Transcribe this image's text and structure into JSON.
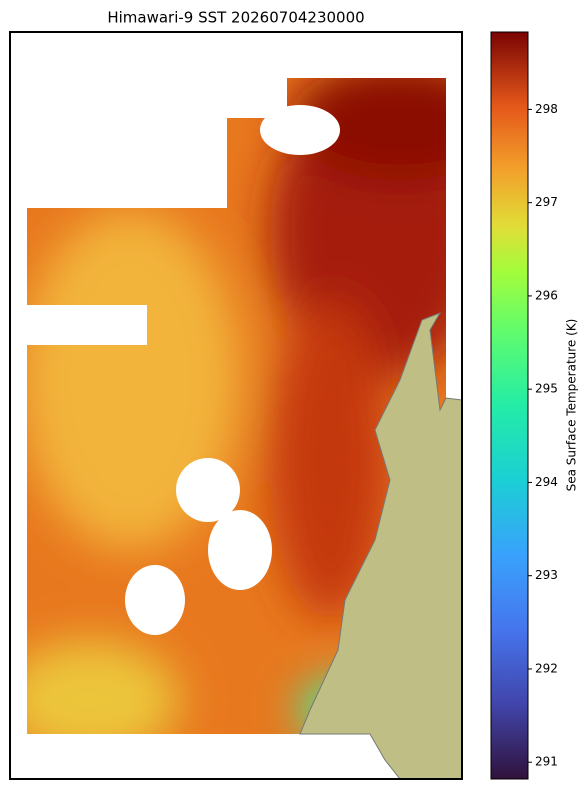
{
  "map": {
    "title": "Himawari-9 SST 20260704230000",
    "colorbar": {
      "label": "Sea Surface Temperature (K)",
      "lim": [
        290.82,
        298.83
      ],
      "ticks": [
        291,
        292,
        293,
        294,
        295,
        296,
        297,
        298
      ]
    }
  }
}
